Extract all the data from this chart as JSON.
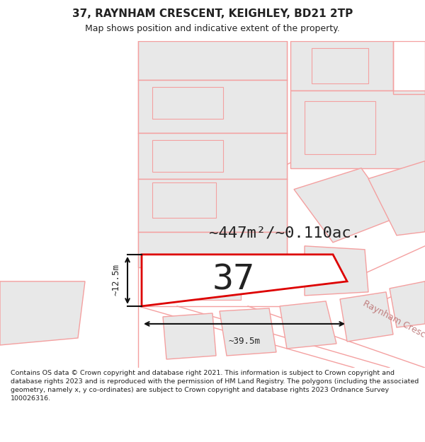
{
  "title": "37, RAYNHAM CRESCENT, KEIGHLEY, BD21 2TP",
  "subtitle": "Map shows position and indicative extent of the property.",
  "area_text": "~447m²/~0.110ac.",
  "number_label": "37",
  "dim_width": "~39.5m",
  "dim_height": "~12.5m",
  "street_label": "Raynham Crescent",
  "footer": "Contains OS data © Crown copyright and database right 2021. This information is subject to Crown copyright and database rights 2023 and is reproduced with the permission of HM Land Registry. The polygons (including the associated geometry, namely x, y co-ordinates) are subject to Crown copyright and database rights 2023 Ordnance Survey 100026316.",
  "bg_color": "#ffffff",
  "map_bg": "#ffffff",
  "parcel_fill": "#e8e8e8",
  "line_color": "#f4a0a0",
  "highlight_line": "#dd0000",
  "road_line_color": "#f4a0a0",
  "text_color": "#222222",
  "street_label_color": "#c08080",
  "title_fontsize": 11,
  "subtitle_fontsize": 9,
  "area_fontsize": 16,
  "number_fontsize": 36,
  "dim_fontsize": 9,
  "street_fontsize": 9,
  "footer_fontsize": 6.8
}
